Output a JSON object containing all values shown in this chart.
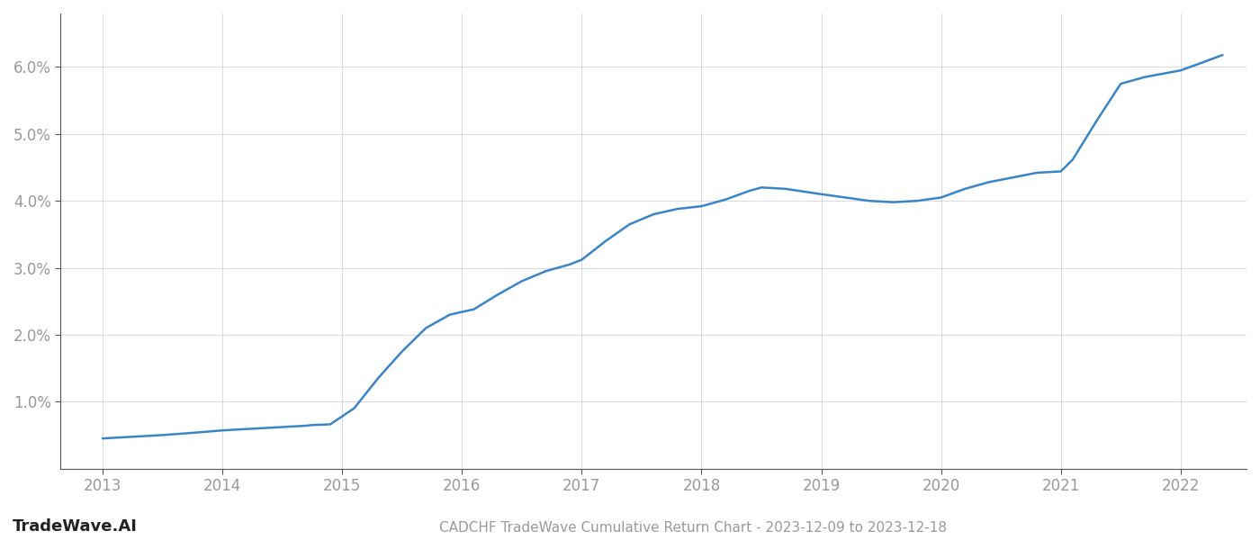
{
  "x_values": [
    2013.0,
    2013.2,
    2013.5,
    2013.8,
    2014.0,
    2014.3,
    2014.5,
    2014.6,
    2014.7,
    2014.75,
    2014.9,
    2015.1,
    2015.3,
    2015.5,
    2015.7,
    2015.9,
    2016.1,
    2016.3,
    2016.5,
    2016.7,
    2016.9,
    2017.0,
    2017.2,
    2017.4,
    2017.6,
    2017.8,
    2018.0,
    2018.2,
    2018.4,
    2018.5,
    2018.7,
    2019.0,
    2019.2,
    2019.4,
    2019.6,
    2019.8,
    2020.0,
    2020.2,
    2020.4,
    2020.6,
    2020.8,
    2021.0,
    2021.1,
    2021.3,
    2021.5,
    2021.7,
    2021.85,
    2022.0,
    2022.2,
    2022.35
  ],
  "y_values": [
    0.45,
    0.47,
    0.5,
    0.54,
    0.57,
    0.6,
    0.62,
    0.63,
    0.64,
    0.65,
    0.66,
    0.9,
    1.35,
    1.75,
    2.1,
    2.3,
    2.38,
    2.6,
    2.8,
    2.95,
    3.05,
    3.12,
    3.4,
    3.65,
    3.8,
    3.88,
    3.92,
    4.02,
    4.15,
    4.2,
    4.18,
    4.1,
    4.05,
    4.0,
    3.98,
    4.0,
    4.05,
    4.18,
    4.28,
    4.35,
    4.42,
    4.44,
    4.62,
    5.2,
    5.75,
    5.85,
    5.9,
    5.95,
    6.08,
    6.18
  ],
  "line_color": "#3a85c8",
  "line_width": 1.8,
  "background_color": "#ffffff",
  "grid_color": "#cccccc",
  "title": "CADCHF TradeWave Cumulative Return Chart - 2023-12-09 to 2023-12-18",
  "watermark": "TradeWave.AI",
  "xlim": [
    2012.65,
    2022.55
  ],
  "ylim": [
    0.0,
    6.8
  ],
  "xtick_labels": [
    "2013",
    "2014",
    "2015",
    "2016",
    "2017",
    "2018",
    "2019",
    "2020",
    "2021",
    "2022"
  ],
  "xtick_positions": [
    2013,
    2014,
    2015,
    2016,
    2017,
    2018,
    2019,
    2020,
    2021,
    2022
  ],
  "ytick_positions": [
    1.0,
    2.0,
    3.0,
    4.0,
    5.0,
    6.0
  ],
  "ytick_labels": [
    "1.0%",
    "2.0%",
    "3.0%",
    "4.0%",
    "5.0%",
    "6.0%"
  ],
  "tick_label_color": "#999999",
  "title_fontsize": 11,
  "watermark_fontsize": 13,
  "axis_label_fontsize": 12
}
